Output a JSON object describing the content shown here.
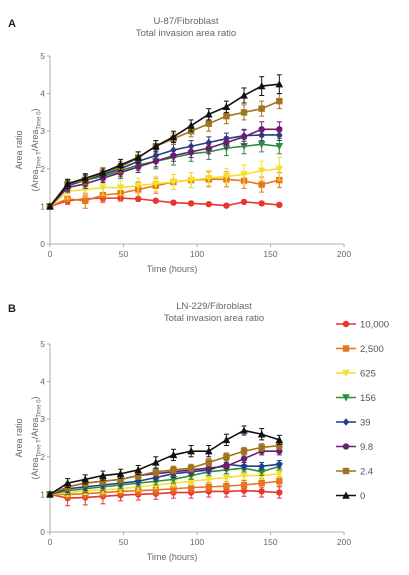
{
  "chart_data": [
    {
      "panel": "A",
      "type": "line",
      "title": "U-87/Fibroblast",
      "subtitle": "Total invasion area ratio",
      "xlabel": "Time (hours)",
      "ylabel": "Area ratio",
      "ylabel2": "(Area",
      "ylabel2_sub1": "Time T",
      "ylabel2_mid": "/Area",
      "ylabel2_sub2": "Time 0",
      "ylabel2_end": ")",
      "xlim": [
        0,
        200
      ],
      "ylim": [
        0,
        5
      ],
      "xticks": [
        "0",
        "50",
        "100",
        "150",
        "200"
      ],
      "yticks": [
        "0",
        "1",
        "2",
        "3",
        "4",
        "5"
      ],
      "x": [
        0,
        12,
        24,
        36,
        48,
        60,
        72,
        84,
        96,
        108,
        120,
        132,
        144,
        156
      ],
      "series": [
        {
          "name": "10,000",
          "color": "#e8352e",
          "marker": "circle",
          "values": [
            1.0,
            1.15,
            1.2,
            1.22,
            1.22,
            1.2,
            1.15,
            1.1,
            1.08,
            1.06,
            1.02,
            1.12,
            1.08,
            1.04
          ],
          "errors": [
            0.05,
            0.08,
            0.1,
            0.08,
            0.08,
            0.06,
            0.05,
            0.05,
            0.05,
            0.04,
            0.04,
            0.05,
            0.04,
            0.04
          ]
        },
        {
          "name": "2,500",
          "color": "#e8741e",
          "marker": "square",
          "values": [
            1.0,
            1.2,
            1.15,
            1.3,
            1.35,
            1.45,
            1.55,
            1.65,
            1.7,
            1.72,
            1.72,
            1.68,
            1.58,
            1.7
          ],
          "errors": [
            0.05,
            0.15,
            0.2,
            0.2,
            0.2,
            0.2,
            0.2,
            0.2,
            0.2,
            0.2,
            0.2,
            0.2,
            0.2,
            0.2
          ]
        },
        {
          "name": "625",
          "color": "#f2e12c",
          "marker": "triangle-down",
          "values": [
            1.0,
            1.4,
            1.45,
            1.5,
            1.5,
            1.55,
            1.6,
            1.65,
            1.7,
            1.75,
            1.8,
            1.85,
            1.95,
            2.0
          ],
          "errors": [
            0.05,
            0.2,
            0.2,
            0.2,
            0.2,
            0.2,
            0.2,
            0.2,
            0.2,
            0.2,
            0.2,
            0.25,
            0.25,
            0.3
          ]
        },
        {
          "name": "156",
          "color": "#2e8b3e",
          "marker": "triangle-down",
          "values": [
            1.0,
            1.55,
            1.7,
            1.8,
            1.95,
            2.1,
            2.2,
            2.3,
            2.4,
            2.45,
            2.55,
            2.6,
            2.65,
            2.6
          ],
          "errors": [
            0.05,
            0.15,
            0.15,
            0.15,
            0.15,
            0.15,
            0.2,
            0.2,
            0.2,
            0.2,
            0.2,
            0.2,
            0.2,
            0.2
          ]
        },
        {
          "name": "39",
          "color": "#1f3f8a",
          "marker": "diamond",
          "values": [
            1.0,
            1.55,
            1.7,
            1.85,
            2.0,
            2.2,
            2.35,
            2.5,
            2.6,
            2.7,
            2.8,
            2.88,
            2.9,
            2.9
          ],
          "errors": [
            0.05,
            0.12,
            0.12,
            0.12,
            0.15,
            0.15,
            0.15,
            0.15,
            0.15,
            0.15,
            0.15,
            0.15,
            0.15,
            0.15
          ]
        },
        {
          "name": "9.8",
          "color": "#6a1f6e",
          "marker": "circle",
          "values": [
            1.0,
            1.5,
            1.6,
            1.75,
            1.9,
            2.05,
            2.2,
            2.35,
            2.45,
            2.55,
            2.7,
            2.85,
            3.05,
            3.05
          ],
          "errors": [
            0.05,
            0.12,
            0.12,
            0.12,
            0.15,
            0.15,
            0.15,
            0.15,
            0.15,
            0.15,
            0.15,
            0.2,
            0.2,
            0.2
          ]
        },
        {
          "name": "2.4",
          "color": "#a0741e",
          "marker": "square",
          "values": [
            1.0,
            1.6,
            1.7,
            1.9,
            2.05,
            2.3,
            2.6,
            2.8,
            3.0,
            3.2,
            3.4,
            3.5,
            3.6,
            3.8
          ],
          "errors": [
            0.05,
            0.12,
            0.12,
            0.12,
            0.15,
            0.15,
            0.15,
            0.15,
            0.15,
            0.2,
            0.2,
            0.2,
            0.2,
            0.2
          ]
        },
        {
          "name": "0",
          "color": "#111111",
          "marker": "triangle-up",
          "values": [
            1.0,
            1.6,
            1.75,
            1.9,
            2.1,
            2.3,
            2.6,
            2.85,
            3.15,
            3.45,
            3.65,
            3.95,
            4.2,
            4.25
          ],
          "errors": [
            0.05,
            0.12,
            0.12,
            0.12,
            0.15,
            0.15,
            0.15,
            0.15,
            0.15,
            0.15,
            0.15,
            0.2,
            0.25,
            0.25
          ]
        }
      ]
    },
    {
      "panel": "B",
      "type": "line",
      "title": "LN-229/Fibroblast",
      "subtitle": "Total invasion area ratio",
      "xlabel": "Time (hours)",
      "ylabel": "Area ratio",
      "ylabel2": "(Area",
      "ylabel2_sub1": "Time T",
      "ylabel2_mid": "/Area",
      "ylabel2_sub2": "Time 0",
      "ylabel2_end": ")",
      "xlim": [
        0,
        200
      ],
      "ylim": [
        0,
        5
      ],
      "xticks": [
        "0",
        "50",
        "100",
        "150",
        "200"
      ],
      "yticks": [
        "0",
        "1",
        "2",
        "3",
        "4",
        "5"
      ],
      "legend_position": "right",
      "x": [
        0,
        12,
        24,
        36,
        48,
        60,
        72,
        84,
        96,
        108,
        120,
        132,
        144,
        156
      ],
      "series": [
        {
          "name": "10,000",
          "color": "#e8352e",
          "marker": "circle",
          "values": [
            1.0,
            0.9,
            0.92,
            0.95,
            0.98,
            1.0,
            1.02,
            1.05,
            1.05,
            1.08,
            1.08,
            1.1,
            1.08,
            1.05
          ],
          "errors": [
            0.05,
            0.2,
            0.2,
            0.2,
            0.15,
            0.15,
            0.15,
            0.15,
            0.15,
            0.15,
            0.15,
            0.15,
            0.15,
            0.15
          ]
        },
        {
          "name": "2,500",
          "color": "#e8741e",
          "marker": "square",
          "values": [
            1.0,
            1.0,
            1.02,
            1.05,
            1.08,
            1.1,
            1.12,
            1.15,
            1.18,
            1.2,
            1.22,
            1.25,
            1.3,
            1.35
          ],
          "errors": [
            0.05,
            0.12,
            0.12,
            0.12,
            0.12,
            0.12,
            0.12,
            0.12,
            0.12,
            0.12,
            0.12,
            0.12,
            0.12,
            0.12
          ]
        },
        {
          "name": "625",
          "color": "#f2e12c",
          "marker": "triangle-down",
          "values": [
            1.0,
            1.05,
            1.1,
            1.12,
            1.15,
            1.2,
            1.25,
            1.3,
            1.35,
            1.4,
            1.45,
            1.5,
            1.5,
            1.55
          ],
          "errors": [
            0.05,
            0.1,
            0.1,
            0.1,
            0.1,
            0.1,
            0.1,
            0.1,
            0.1,
            0.1,
            0.1,
            0.1,
            0.1,
            0.1
          ]
        },
        {
          "name": "156",
          "color": "#2e8b3e",
          "marker": "triangle-down",
          "values": [
            1.0,
            1.1,
            1.15,
            1.2,
            1.25,
            1.3,
            1.35,
            1.4,
            1.5,
            1.6,
            1.65,
            1.7,
            1.6,
            1.75
          ],
          "errors": [
            0.05,
            0.1,
            0.1,
            0.1,
            0.1,
            0.1,
            0.1,
            0.1,
            0.1,
            0.1,
            0.1,
            0.1,
            0.1,
            0.1
          ]
        },
        {
          "name": "39",
          "color": "#1f3f8a",
          "marker": "diamond",
          "values": [
            1.0,
            1.15,
            1.2,
            1.25,
            1.3,
            1.35,
            1.45,
            1.55,
            1.6,
            1.65,
            1.8,
            1.75,
            1.75,
            1.8
          ],
          "errors": [
            0.05,
            0.1,
            0.1,
            0.1,
            0.1,
            0.1,
            0.1,
            0.1,
            0.1,
            0.1,
            0.1,
            0.1,
            0.1,
            0.1
          ]
        },
        {
          "name": "9.8",
          "color": "#6a1f6e",
          "marker": "circle",
          "values": [
            1.0,
            1.2,
            1.3,
            1.35,
            1.4,
            1.5,
            1.55,
            1.6,
            1.65,
            1.7,
            1.75,
            1.95,
            2.15,
            2.15
          ],
          "errors": [
            0.05,
            0.1,
            0.1,
            0.1,
            0.1,
            0.1,
            0.1,
            0.1,
            0.1,
            0.1,
            0.1,
            0.1,
            0.1,
            0.1
          ]
        },
        {
          "name": "2.4",
          "color": "#a0741e",
          "marker": "square",
          "values": [
            1.0,
            1.2,
            1.3,
            1.35,
            1.4,
            1.5,
            1.6,
            1.65,
            1.7,
            1.85,
            2.0,
            2.15,
            2.25,
            2.3
          ],
          "errors": [
            0.05,
            0.1,
            0.1,
            0.1,
            0.1,
            0.1,
            0.1,
            0.1,
            0.1,
            0.1,
            0.1,
            0.1,
            0.1,
            0.1
          ]
        },
        {
          "name": "0",
          "color": "#111111",
          "marker": "triangle-up",
          "values": [
            1.0,
            1.3,
            1.4,
            1.5,
            1.55,
            1.65,
            1.85,
            2.05,
            2.15,
            2.15,
            2.45,
            2.7,
            2.6,
            2.45
          ],
          "errors": [
            0.05,
            0.12,
            0.12,
            0.12,
            0.12,
            0.12,
            0.15,
            0.15,
            0.15,
            0.15,
            0.15,
            0.12,
            0.15,
            0.12
          ]
        }
      ]
    }
  ]
}
